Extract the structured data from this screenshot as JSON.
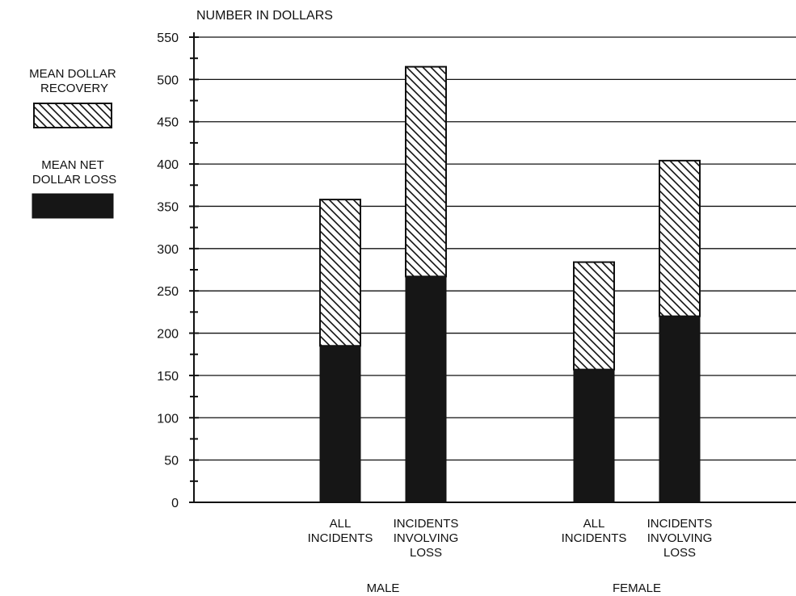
{
  "chart_data": {
    "type": "bar",
    "stacked": true,
    "ylabel": "NUMBER IN DOLLARS",
    "ylim": [
      0,
      550
    ],
    "yticks": [
      "0",
      "50",
      "100",
      "150",
      "200",
      "250",
      "300",
      "350",
      "400",
      "450",
      "500",
      "550"
    ],
    "grid": true,
    "legend_position": "left",
    "groups": [
      {
        "label": "MALE",
        "categories": [
          [
            "ALL",
            "INCIDENTS"
          ],
          [
            "INCIDENTS",
            "INVOLVING",
            "LOSS"
          ]
        ]
      },
      {
        "label": "FEMALE",
        "categories": [
          [
            "ALL",
            "INCIDENTS"
          ],
          [
            "INCIDENTS",
            "INVOLVING",
            "LOSS"
          ]
        ]
      }
    ],
    "series": [
      {
        "name": [
          "MEAN NET",
          "DOLLAR LOSS"
        ],
        "pattern": "solid-dark",
        "color": "#161616",
        "values": [
          185,
          267,
          157,
          220
        ]
      },
      {
        "name": [
          "MEAN DOLLAR",
          "RECOVERY"
        ],
        "pattern": "diagonal-hatch",
        "color": "#ffffff",
        "values": [
          173,
          248,
          127,
          184
        ]
      }
    ],
    "totals": [
      358,
      515,
      284,
      404
    ]
  }
}
